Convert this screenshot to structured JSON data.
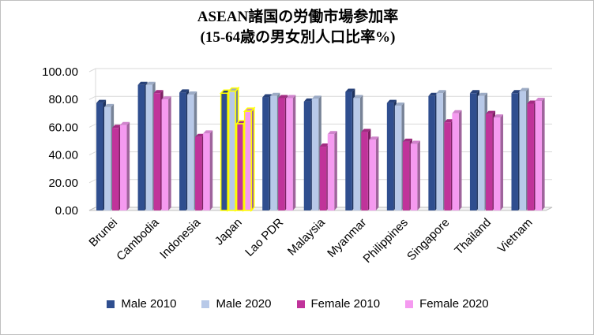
{
  "chart_data": {
    "type": "bar",
    "title_line1": "ASEAN諸国の労働市場参加率",
    "title_line2": "(15-64歳の男女別人口比率%)",
    "categories": [
      "Brunei",
      "Cambodia",
      "Indonesia",
      "Japan",
      "Lao PDR",
      "Malaysia",
      "Myanmar",
      "Philippines",
      "Singapore",
      "Thailand",
      "Vietnam"
    ],
    "series": [
      {
        "name": "Male 2010",
        "color": "#2f4e8f",
        "values": [
          77.5,
          90.5,
          85,
          84.5,
          81.5,
          78.5,
          85.5,
          77.5,
          82.5,
          84.5,
          84.5
        ]
      },
      {
        "name": "Male 2020",
        "color": "#b8c9e8",
        "values": [
          74.5,
          90.5,
          83.5,
          86,
          82.5,
          80.5,
          81,
          75.5,
          84.5,
          82.5,
          86
        ]
      },
      {
        "name": "Female 2010",
        "color": "#c0339a",
        "values": [
          59.5,
          84.5,
          53,
          62.5,
          81,
          46,
          56.5,
          49.5,
          63.5,
          69.5,
          77
        ]
      },
      {
        "name": "Female 2020",
        "color": "#f59af0",
        "values": [
          61.5,
          80,
          55.5,
          71.5,
          81,
          55,
          51,
          48,
          70,
          67,
          79
        ]
      }
    ],
    "ylim": [
      0,
      100
    ],
    "yticks": [
      "0.00",
      "20.00",
      "40.00",
      "60.00",
      "80.00",
      "100.00"
    ],
    "highlighted_category": "Japan",
    "grid": true
  }
}
